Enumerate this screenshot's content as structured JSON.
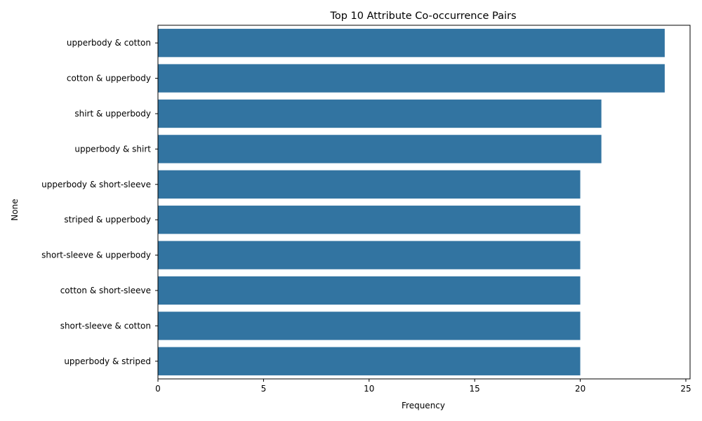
{
  "chart_data": {
    "type": "bar",
    "orientation": "horizontal",
    "title": "Top 10 Attribute Co-occurrence Pairs",
    "xlabel": "Frequency",
    "ylabel": "None",
    "xlim": [
      0,
      25.2
    ],
    "xticks": [
      0,
      5,
      10,
      15,
      20,
      25
    ],
    "categories": [
      "upperbody & cotton",
      "cotton & upperbody",
      "shirt & upperbody",
      "upperbody & shirt",
      "upperbody & short-sleeve",
      "striped & upperbody",
      "short-sleeve & upperbody",
      "cotton & short-sleeve",
      "short-sleeve & cotton",
      "upperbody & striped"
    ],
    "values": [
      24,
      24,
      21,
      21,
      20,
      20,
      20,
      20,
      20,
      20
    ],
    "bar_color": "#3274a1",
    "grid": false,
    "legend": "none"
  }
}
